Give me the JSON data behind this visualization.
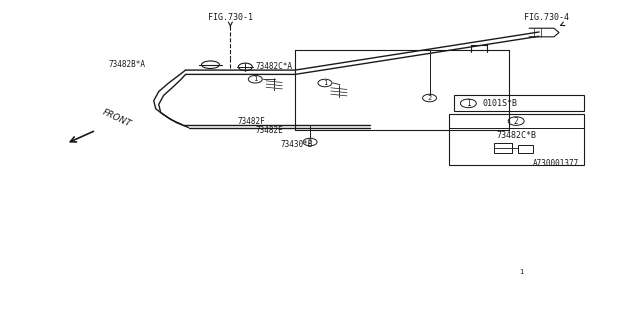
{
  "bg_color": "#ffffff",
  "line_color": "#1a1a1a",
  "fig_label_730_1": "FIG.730-1",
  "fig_label_730_4": "FIG.730-4",
  "footer": "A730001377",
  "legend1_label": "0101S*B",
  "legend2_label": "73482C*B",
  "part_73482BA": "73482B*A",
  "part_73482CA": "73482C*A",
  "part_73482F": "73482F",
  "part_73482E": "73482E",
  "part_73430B": "73430*B",
  "front_label": "FRONT"
}
